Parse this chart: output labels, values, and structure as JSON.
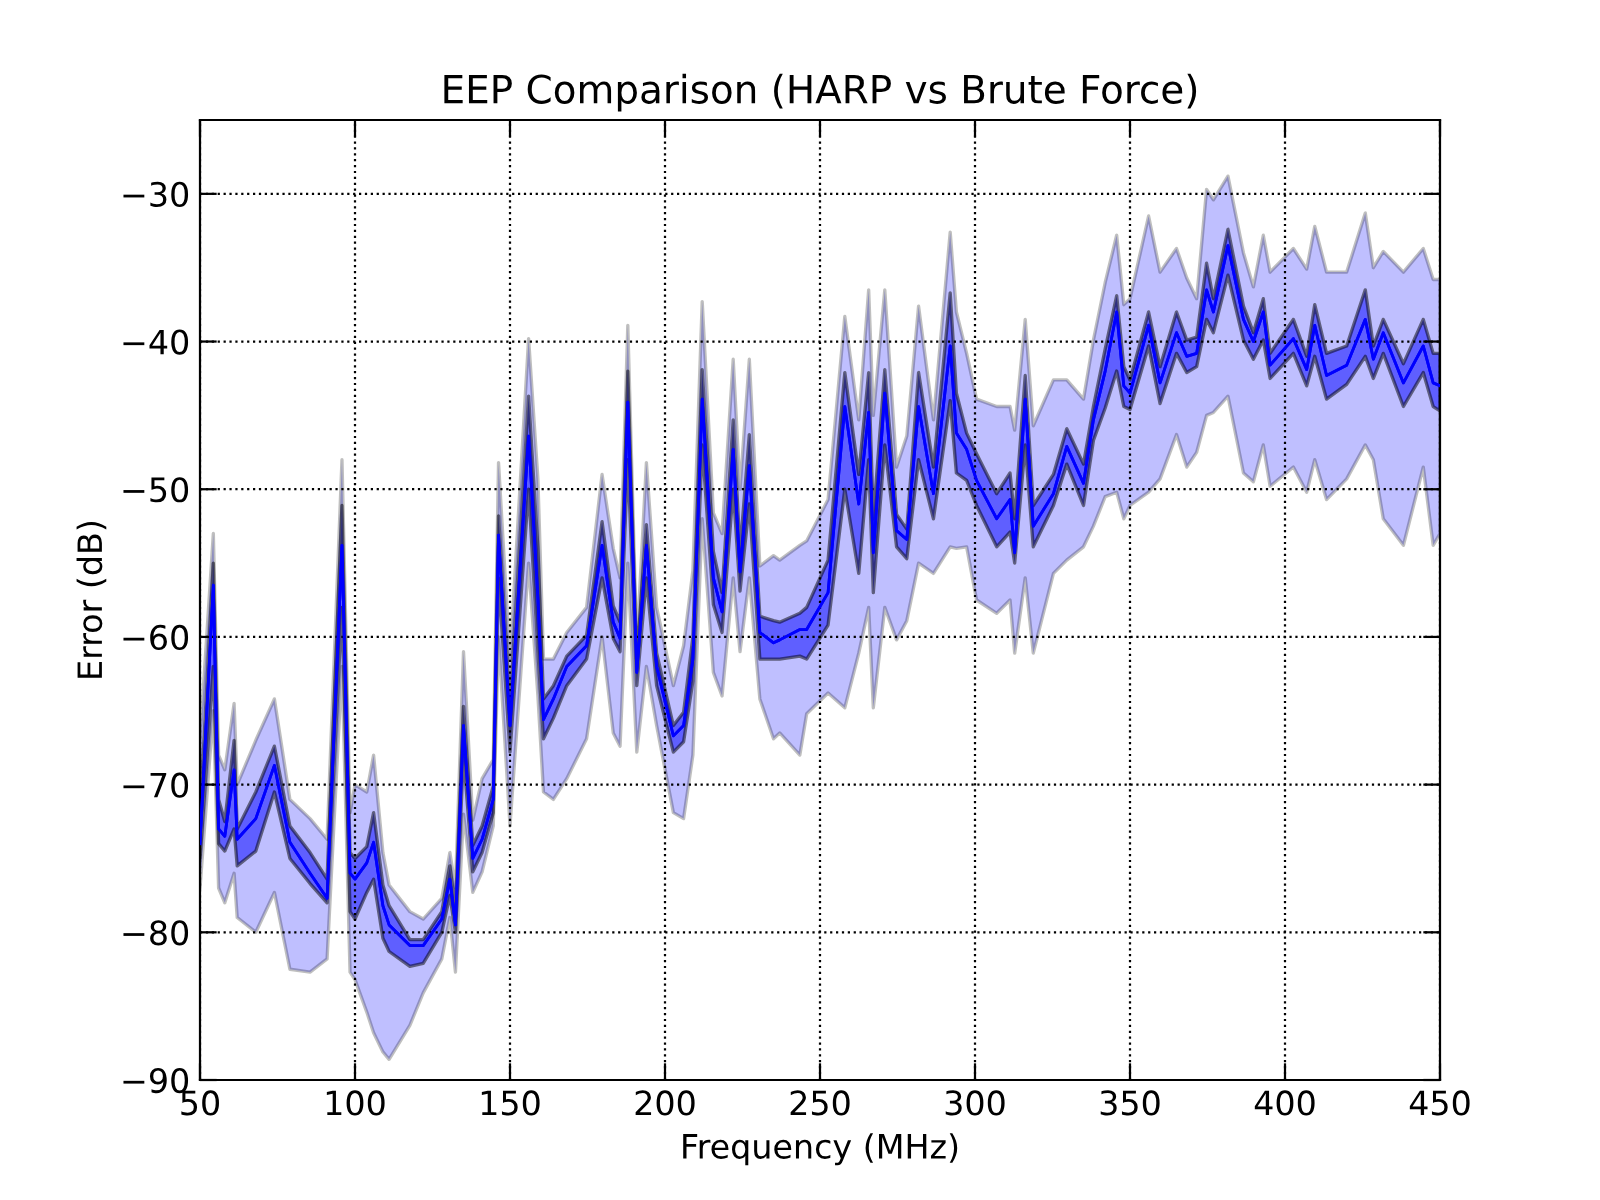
{
  "chart_data": {
    "type": "line",
    "title": "EEP Comparison (HARP vs Brute Force)",
    "xlabel": "Frequency (MHz)",
    "ylabel": "Error (dB)",
    "x": [
      50,
      54.3,
      56,
      58,
      61,
      62,
      68,
      74,
      79,
      85.5,
      91,
      95.8,
      98.4,
      100,
      103.8,
      106,
      109,
      111,
      117.7,
      122,
      128,
      130.6,
      132.4,
      135,
      138,
      141,
      144.6,
      146.3,
      150,
      156,
      159,
      160.8,
      164,
      168.3,
      174.7,
      179.7,
      183.3,
      185.5,
      188,
      190.9,
      194,
      197.3,
      202.7,
      206,
      209,
      212,
      215.6,
      218.4,
      222,
      224.2,
      227.2,
      230.6,
      235,
      237,
      243.5,
      245.7,
      252.6,
      258,
      262.5,
      265.7,
      267.2,
      270.9,
      274.7,
      278,
      281.8,
      286.6,
      292,
      294,
      297.3,
      300.5,
      307,
      311.3,
      312.8,
      316.2,
      318.8,
      325.3,
      329.6,
      335,
      338.2,
      342,
      345.7,
      348,
      350,
      356,
      359.7,
      365,
      368.3,
      371.5,
      374.7,
      376.9,
      381.6,
      386.6,
      389.8,
      393,
      395.2,
      402.7,
      407,
      409.6,
      413.4,
      419.9,
      425.9,
      428.5,
      431.7,
      438.2,
      444.6,
      447.8,
      450
    ],
    "series": [
      {
        "color": "#0000ff",
        "values": [
          -74,
          -56.5,
          -73,
          -73.5,
          -69,
          -73.7,
          -72.3,
          -68.7,
          -73.9,
          -76,
          -77.7,
          -53.8,
          -76,
          -76.4,
          -75.3,
          -73.9,
          -78.2,
          -79.5,
          -80.9,
          -80.9,
          -79.1,
          -76.4,
          -79.5,
          -66,
          -75,
          -73.7,
          -71,
          -53.1,
          -66,
          -46.4,
          -57.4,
          -65.6,
          -64.2,
          -62,
          -60.6,
          -53.8,
          -59,
          -60.1,
          -44.1,
          -62.4,
          -53.8,
          -62,
          -66.7,
          -66,
          -61.5,
          -43.9,
          -56,
          -58.3,
          -47.3,
          -55.6,
          -48.4,
          -59.7,
          -60.4,
          -60.2,
          -59.5,
          -59.5,
          -57,
          -44.4,
          -51,
          -44.8,
          -54.3,
          -43.5,
          -52.8,
          -53.4,
          -44.4,
          -50.3,
          -40.3,
          -46.2,
          -47.3,
          -49.4,
          -52,
          -50.7,
          -54.3,
          -43.9,
          -52.5,
          -50.3,
          -47.1,
          -49.6,
          -45.3,
          -42,
          -38,
          -43,
          -43.5,
          -38.9,
          -42.8,
          -39.4,
          -41,
          -40.8,
          -36.5,
          -38,
          -33.5,
          -38.5,
          -40,
          -38,
          -41.6,
          -39.8,
          -41.9,
          -38.9,
          -42.3,
          -41.6,
          -38.5,
          -41.2,
          -39.4,
          -42.8,
          -40.3,
          -42.8,
          -43
        ],
        "lower": [
          -77,
          -65,
          -77,
          -78,
          -76,
          -79,
          -80,
          -77.3,
          -82.5,
          -82.7,
          -81.8,
          -62,
          -82.7,
          -83.2,
          -85.4,
          -86.8,
          -88.1,
          -88.6,
          -86.3,
          -84.1,
          -81.8,
          -79,
          -82.7,
          -72,
          -77.3,
          -75.9,
          -72.8,
          -60,
          -72.8,
          -55,
          -64,
          -70.5,
          -71,
          -69.6,
          -66.9,
          -60,
          -66.5,
          -67.4,
          -55,
          -67.8,
          -62,
          -66,
          -71.9,
          -72.3,
          -68,
          -52,
          -62.4,
          -64,
          -56,
          -61,
          -56,
          -64.2,
          -66.9,
          -66.5,
          -68,
          -65.2,
          -63.8,
          -64.8,
          -61.1,
          -58,
          -64.8,
          -58,
          -60.2,
          -58.9,
          -55,
          -55.7,
          -53.9,
          -54,
          -53.9,
          -57.5,
          -58.4,
          -57.5,
          -61.1,
          -56,
          -61.1,
          -55.7,
          -54.8,
          -53.9,
          -52.5,
          -50.5,
          -50.2,
          -52,
          -51.1,
          -50.2,
          -49.3,
          -46.3,
          -48.5,
          -47.5,
          -45,
          -44.8,
          -43.7,
          -48.9,
          -49.5,
          -47,
          -49.8,
          -48.5,
          -50.2,
          -48,
          -50.7,
          -49.3,
          -47,
          -48,
          -52,
          -53.8,
          -48.5,
          -53.8,
          -53
        ],
        "upper": [
          -67,
          -53,
          -68,
          -69,
          -64.5,
          -70,
          -67,
          -64.2,
          -71,
          -72.3,
          -73.7,
          -48,
          -71.9,
          -70,
          -70.5,
          -68,
          -74.6,
          -76.8,
          -78.6,
          -79.1,
          -77.7,
          -74.6,
          -77,
          -61,
          -72.4,
          -69.6,
          -68.3,
          -48.2,
          -61.5,
          -39.8,
          -49.3,
          -61.5,
          -61.5,
          -59.7,
          -58,
          -49,
          -54,
          -56,
          -38.9,
          -60.6,
          -48.2,
          -58,
          -63.3,
          -60.6,
          -55.5,
          -37.3,
          -51.6,
          -53,
          -41.2,
          -50,
          -41.2,
          -55.2,
          -54.5,
          -54.8,
          -53.8,
          -53.5,
          -50.7,
          -38.3,
          -45.3,
          -36.5,
          -45,
          -36.5,
          -48.5,
          -46.4,
          -37.6,
          -45.3,
          -32.6,
          -38,
          -40.8,
          -43.9,
          -44.4,
          -44.4,
          -46,
          -38.5,
          -45.7,
          -42.6,
          -42.6,
          -43.9,
          -39.9,
          -36,
          -32.8,
          -37.5,
          -37.1,
          -31.5,
          -35.3,
          -33.7,
          -35.7,
          -37.1,
          -29.7,
          -30.4,
          -28.8,
          -34,
          -36.3,
          -32.8,
          -35.3,
          -33.7,
          -35.1,
          -32.2,
          -35.3,
          -35.3,
          -31.3,
          -35,
          -33.9,
          -35.3,
          -33.7,
          -35.8,
          -35.8
        ]
      },
      {
        "color": "#0000ff",
        "values": [
          -74,
          -56.5,
          -73,
          -73.5,
          -69,
          -73.7,
          -72.3,
          -68.7,
          -73.9,
          -76,
          -77.7,
          -53.8,
          -76,
          -76.4,
          -75.3,
          -73.9,
          -78.2,
          -79.5,
          -80.9,
          -80.9,
          -79.1,
          -76.4,
          -79.5,
          -66,
          -75,
          -73.7,
          -71,
          -53.1,
          -66,
          -46.4,
          -57.4,
          -65.6,
          -64.2,
          -62,
          -60.6,
          -53.8,
          -59,
          -60.1,
          -44.1,
          -62.4,
          -53.8,
          -62,
          -66.7,
          -66,
          -61.5,
          -43.9,
          -56,
          -58.3,
          -47.3,
          -55.6,
          -48.4,
          -59.7,
          -60.4,
          -60.2,
          -59.5,
          -59.5,
          -57,
          -44.4,
          -51,
          -44.8,
          -54.3,
          -43.5,
          -52.8,
          -53.4,
          -44.4,
          -50.3,
          -40.3,
          -46.2,
          -47.3,
          -49.4,
          -52,
          -50.7,
          -54.3,
          -43.9,
          -52.5,
          -50.3,
          -47.1,
          -49.6,
          -45.3,
          -42,
          -38,
          -43,
          -43.5,
          -38.9,
          -42.8,
          -39.4,
          -41,
          -40.8,
          -36.5,
          -38,
          -33.5,
          -38.5,
          -40,
          -38,
          -41.6,
          -39.8,
          -41.9,
          -38.9,
          -42.3,
          -41.6,
          -38.5,
          -41.2,
          -39.4,
          -42.8,
          -40.3,
          -42.8,
          -43
        ],
        "lower": [
          -75,
          -62,
          -74,
          -74.5,
          -73,
          -75.5,
          -74.5,
          -70.5,
          -75,
          -76.7,
          -78,
          -58,
          -78.6,
          -79.1,
          -77.3,
          -76.4,
          -80.4,
          -81.3,
          -82.3,
          -82.1,
          -80,
          -77.5,
          -80,
          -68,
          -75.9,
          -74.6,
          -71.9,
          -56,
          -67.8,
          -50,
          -61,
          -66.9,
          -65.5,
          -63.3,
          -61.5,
          -56,
          -60.1,
          -61,
          -48,
          -63.3,
          -56,
          -63.3,
          -67.8,
          -67.1,
          -63,
          -47,
          -57.8,
          -59.7,
          -50,
          -56.9,
          -51,
          -61.5,
          -61.5,
          -61.5,
          -61.3,
          -61.5,
          -59.2,
          -50,
          -55.7,
          -48,
          -57,
          -47,
          -53.9,
          -54.7,
          -48,
          -52,
          -44,
          -48.9,
          -49.4,
          -51.1,
          -53.9,
          -52.9,
          -55,
          -47,
          -53.9,
          -51.1,
          -48.3,
          -51.1,
          -46.7,
          -44.5,
          -42,
          -44.4,
          -44.6,
          -40.3,
          -44.2,
          -40.8,
          -42.1,
          -41.7,
          -38.5,
          -39.4,
          -35.5,
          -39.9,
          -41.2,
          -39.9,
          -42.5,
          -40.8,
          -43,
          -41,
          -43.9,
          -42.9,
          -41,
          -42.5,
          -40.8,
          -44.4,
          -42.1,
          -44.4,
          -44.7
        ],
        "upper": [
          -72,
          -55,
          -71,
          -72.5,
          -67,
          -73,
          -70.5,
          -67.4,
          -72.8,
          -74.6,
          -76.4,
          -51.1,
          -74.6,
          -75,
          -74.2,
          -71.9,
          -76.8,
          -78.2,
          -80.5,
          -80.5,
          -78.6,
          -75.5,
          -78.5,
          -64.7,
          -74.1,
          -72.8,
          -70.1,
          -51.8,
          -64.7,
          -43.7,
          -54,
          -64.2,
          -63.3,
          -61.3,
          -59.9,
          -52.2,
          -57.9,
          -59,
          -42,
          -61.5,
          -52.4,
          -61.1,
          -66,
          -65.1,
          -60,
          -41.9,
          -54.2,
          -57,
          -45.3,
          -54.2,
          -46.3,
          -58.6,
          -58.9,
          -59,
          -58.4,
          -58,
          -54.8,
          -42.1,
          -49,
          -42.1,
          -52,
          -41.9,
          -51.7,
          -52.7,
          -42.1,
          -48.5,
          -36.7,
          -43.5,
          -46.2,
          -47.6,
          -50.3,
          -48.9,
          -52,
          -42.3,
          -51.1,
          -49,
          -45.9,
          -48.3,
          -44.4,
          -40.5,
          -36.9,
          -41.7,
          -42.6,
          -38,
          -41.7,
          -38,
          -39.9,
          -39.7,
          -34.7,
          -37.1,
          -32.4,
          -37.6,
          -39.4,
          -37.1,
          -40.8,
          -38.5,
          -41,
          -37.5,
          -40.8,
          -40.3,
          -36.5,
          -40.3,
          -38.5,
          -41.5,
          -38.5,
          -40.8,
          -40.8
        ]
      }
    ],
    "xlim": [
      50,
      450
    ],
    "ylim": [
      -90,
      -25
    ],
    "xticks": [
      50,
      100,
      150,
      200,
      250,
      300,
      350,
      400,
      450
    ],
    "yticks": [
      {
        "value": -90,
        "label": "−90"
      },
      {
        "value": -80,
        "label": "−80"
      },
      {
        "value": -70,
        "label": "−70"
      },
      {
        "value": -60,
        "label": "−60"
      },
      {
        "value": -50,
        "label": "−50"
      },
      {
        "value": -40,
        "label": "−40"
      },
      {
        "value": -30,
        "label": "−30"
      }
    ],
    "grid": true,
    "legend": false,
    "marker": "none",
    "line_style": "solid"
  }
}
